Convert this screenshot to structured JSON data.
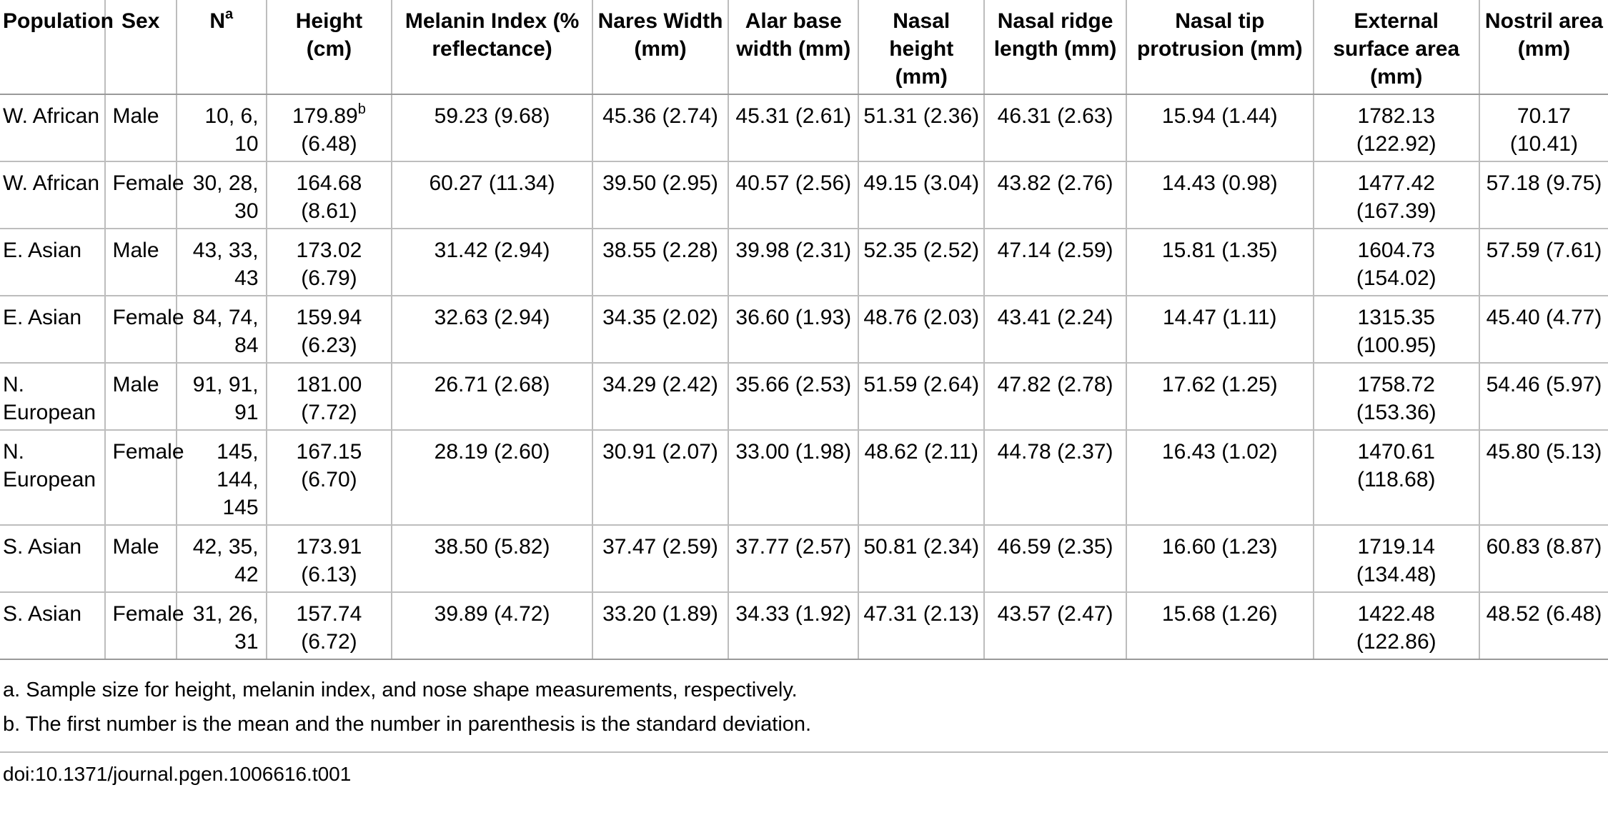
{
  "table": {
    "headers": {
      "population": "Population",
      "sex": "Sex",
      "n": "N",
      "n_sup": "a",
      "height": "Height (cm)",
      "melanin": "Melanin Index (% reflectance)",
      "nares_width": "Nares Width (mm)",
      "alar_base_width": "Alar base width (mm)",
      "nasal_height": "Nasal height (mm)",
      "nasal_ridge_length": "Nasal ridge length (mm)",
      "nasal_tip_protrusion": "Nasal tip protrusion (mm)",
      "external_surface_area": "External surface area (mm)",
      "nostril_area": "Nostril area (mm)"
    },
    "rows": [
      {
        "population": "W. African",
        "sex": "Male",
        "n": "10, 6, 10",
        "height": "179.89",
        "height_sup": "b",
        "height_sd": "(6.48)",
        "melanin": "59.23 (9.68)",
        "nares_width": "45.36 (2.74)",
        "alar_base_width": "45.31 (2.61)",
        "nasal_height": "51.31 (2.36)",
        "nasal_ridge_length": "46.31 (2.63)",
        "nasal_tip_protrusion": "15.94 (1.44)",
        "external_surface_area": "1782.13 (122.92)",
        "nostril_area": "70.17 (10.41)"
      },
      {
        "population": "W. African",
        "sex": "Female",
        "n": "30, 28, 30",
        "height": "164.68",
        "height_sup": "",
        "height_sd": "(8.61)",
        "melanin": "60.27 (11.34)",
        "nares_width": "39.50 (2.95)",
        "alar_base_width": "40.57 (2.56)",
        "nasal_height": "49.15 (3.04)",
        "nasal_ridge_length": "43.82 (2.76)",
        "nasal_tip_protrusion": "14.43 (0.98)",
        "external_surface_area": "1477.42 (167.39)",
        "nostril_area": "57.18 (9.75)"
      },
      {
        "population": "E. Asian",
        "sex": "Male",
        "n": "43, 33, 43",
        "height": "173.02",
        "height_sup": "",
        "height_sd": "(6.79)",
        "melanin": "31.42 (2.94)",
        "nares_width": "38.55 (2.28)",
        "alar_base_width": "39.98 (2.31)",
        "nasal_height": "52.35 (2.52)",
        "nasal_ridge_length": "47.14 (2.59)",
        "nasal_tip_protrusion": "15.81 (1.35)",
        "external_surface_area": "1604.73 (154.02)",
        "nostril_area": "57.59 (7.61)"
      },
      {
        "population": "E. Asian",
        "sex": "Female",
        "n": "84, 74, 84",
        "height": "159.94",
        "height_sup": "",
        "height_sd": "(6.23)",
        "melanin": "32.63 (2.94)",
        "nares_width": "34.35 (2.02)",
        "alar_base_width": "36.60 (1.93)",
        "nasal_height": "48.76 (2.03)",
        "nasal_ridge_length": "43.41 (2.24)",
        "nasal_tip_protrusion": "14.47 (1.11)",
        "external_surface_area": "1315.35 (100.95)",
        "nostril_area": "45.40 (4.77)"
      },
      {
        "population": "N. European",
        "sex": "Male",
        "n": "91, 91, 91",
        "height": "181.00",
        "height_sup": "",
        "height_sd": "(7.72)",
        "melanin": "26.71 (2.68)",
        "nares_width": "34.29 (2.42)",
        "alar_base_width": "35.66 (2.53)",
        "nasal_height": "51.59 (2.64)",
        "nasal_ridge_length": "47.82 (2.78)",
        "nasal_tip_protrusion": "17.62 (1.25)",
        "external_surface_area": "1758.72 (153.36)",
        "nostril_area": "54.46 (5.97)"
      },
      {
        "population": "N. European",
        "sex": "Female",
        "n": "145, 144, 145",
        "height": "167.15",
        "height_sup": "",
        "height_sd": "(6.70)",
        "melanin": "28.19 (2.60)",
        "nares_width": "30.91 (2.07)",
        "alar_base_width": "33.00 (1.98)",
        "nasal_height": "48.62 (2.11)",
        "nasal_ridge_length": "44.78 (2.37)",
        "nasal_tip_protrusion": "16.43 (1.02)",
        "external_surface_area": "1470.61 (118.68)",
        "nostril_area": "45.80 (5.13)"
      },
      {
        "population": "S. Asian",
        "sex": "Male",
        "n": "42, 35, 42",
        "height": "173.91",
        "height_sup": "",
        "height_sd": "(6.13)",
        "melanin": "38.50 (5.82)",
        "nares_width": "37.47 (2.59)",
        "alar_base_width": "37.77 (2.57)",
        "nasal_height": "50.81 (2.34)",
        "nasal_ridge_length": "46.59 (2.35)",
        "nasal_tip_protrusion": "16.60 (1.23)",
        "external_surface_area": "1719.14 (134.48)",
        "nostril_area": "60.83 (8.87)"
      },
      {
        "population": "S. Asian",
        "sex": "Female",
        "n": "31, 26, 31",
        "height": "157.74",
        "height_sup": "",
        "height_sd": "(6.72)",
        "melanin": "39.89 (4.72)",
        "nares_width": "33.20 (1.89)",
        "alar_base_width": "34.33 (1.92)",
        "nasal_height": "47.31 (2.13)",
        "nasal_ridge_length": "43.57 (2.47)",
        "nasal_tip_protrusion": "15.68 (1.26)",
        "external_surface_area": "1422.48 (122.86)",
        "nostril_area": "48.52 (6.48)"
      }
    ]
  },
  "footnotes": [
    "a. Sample size for height, melanin index, and nose shape measurements, respectively.",
    "b. The first number is the mean and the number in parenthesis is the standard deviation."
  ],
  "doi": "doi:10.1371/journal.pgen.1006616.t001"
}
